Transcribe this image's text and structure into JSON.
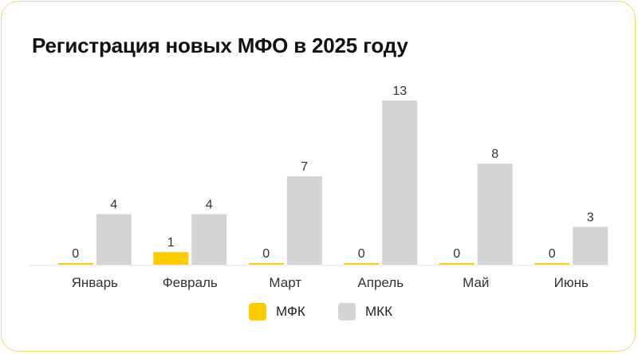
{
  "colors": {
    "mfk": "#ffcc00",
    "mkk": "#d4d4d4",
    "border": "#f3d769",
    "axis": "#e6e6e6"
  },
  "chart_data": {
    "type": "bar",
    "title": "Регистрация новых МФО в 2025 году",
    "categories": [
      "Январь",
      "Февраль",
      "Март",
      "Апрель",
      "Май",
      "Июнь"
    ],
    "series": [
      {
        "name": "МФК",
        "values": [
          0,
          1,
          0,
          0,
          0,
          0
        ],
        "color": "#ffcc00"
      },
      {
        "name": "МКК",
        "values": [
          4,
          4,
          7,
          13,
          8,
          3
        ],
        "color": "#d4d4d4"
      }
    ],
    "ylim": [
      0,
      13
    ],
    "xlabel": "",
    "ylabel": "",
    "grid": false,
    "legend_position": "bottom-center"
  }
}
